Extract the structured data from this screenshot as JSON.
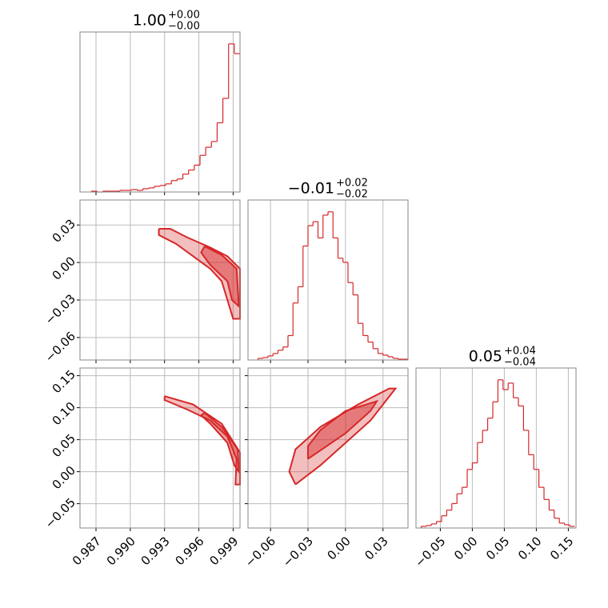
{
  "chart_data": {
    "type": "corner",
    "color": "#d62728",
    "grid": true,
    "params": [
      {
        "title": "1.00",
        "upper": "+0.00",
        "lower": "−0.00",
        "lim": [
          0.9856,
          0.9996
        ],
        "ticks": [
          0.987,
          {
            "value": 0.99,
            "label": "0.990"
          },
          0.993,
          0.996,
          0.999
        ],
        "hist": {
          "bins": [
            0.9866,
            0.9871,
            0.9876,
            0.9881,
            0.9886,
            0.9891,
            0.9896,
            0.9901,
            0.9906,
            0.9911,
            0.9916,
            0.9921,
            0.9926,
            0.9931,
            0.9936,
            0.9941,
            0.9946,
            0.9951,
            0.9956,
            0.9961,
            0.9966,
            0.9971,
            0.9976,
            0.9981,
            0.9986,
            0.9991,
            0.9996
          ],
          "values": [
            1,
            0,
            1,
            1,
            1,
            2,
            2,
            3,
            2,
            4,
            5,
            7,
            8,
            10,
            14,
            16,
            22,
            27,
            33,
            45,
            55,
            62,
            85,
            115,
            182,
            170
          ]
        }
      },
      {
        "title": "−0.01",
        "upper": "+0.02",
        "lower": "−0.02",
        "lim": [
          -0.078,
          0.05
        ],
        "ticks": [
          {
            "value": -0.06,
            "label": "−0.06"
          },
          {
            "value": -0.03,
            "label": "−0.03"
          },
          {
            "value": 0,
            "label": "0.00"
          },
          0.03
        ],
        "hist": {
          "bins": [
            -0.07,
            -0.066,
            -0.062,
            -0.058,
            -0.054,
            -0.05,
            -0.046,
            -0.042,
            -0.038,
            -0.034,
            -0.03,
            -0.026,
            -0.022,
            -0.018,
            -0.014,
            -0.01,
            -0.006,
            -0.002,
            0.002,
            0.006,
            0.01,
            0.014,
            0.018,
            0.022,
            0.026,
            0.03,
            0.034,
            0.038,
            0.042,
            0.046,
            0.05
          ],
          "values": [
            2,
            3,
            5,
            8,
            12,
            16,
            30,
            70,
            90,
            140,
            165,
            170,
            150,
            178,
            182,
            150,
            125,
            120,
            95,
            80,
            45,
            30,
            22,
            14,
            8,
            6,
            4,
            2,
            1,
            1
          ]
        }
      },
      {
        "title": "0.05",
        "upper": "+0.04",
        "lower": "−0.04",
        "lim": [
          -0.088,
          0.162
        ],
        "ticks": [
          {
            "value": -0.05,
            "label": "−0.05"
          },
          {
            "value": 0,
            "label": "0.00"
          },
          0.05,
          {
            "value": 0.1,
            "label": "0.10"
          },
          0.15
        ],
        "hist": {
          "bins": [
            -0.08,
            -0.072,
            -0.064,
            -0.056,
            -0.048,
            -0.04,
            -0.032,
            -0.024,
            -0.016,
            -0.008,
            0,
            0.008,
            0.016,
            0.024,
            0.032,
            0.04,
            0.048,
            0.056,
            0.064,
            0.072,
            0.08,
            0.088,
            0.096,
            0.104,
            0.112,
            0.12,
            0.128,
            0.136,
            0.144,
            0.152,
            0.16
          ],
          "values": [
            2,
            3,
            5,
            8,
            15,
            22,
            30,
            42,
            50,
            72,
            80,
            105,
            120,
            135,
            155,
            182,
            170,
            178,
            160,
            150,
            120,
            90,
            72,
            50,
            35,
            22,
            12,
            6,
            4,
            2
          ]
        }
      }
    ],
    "contours": [
      {
        "series": [
          {
            "x": [
              0.9925,
              0.9935,
              0.995,
              0.997,
              0.9985,
              0.9996,
              0.9996,
              0.999,
              0.9985,
              0.998,
              0.997,
              0.9955,
              0.994,
              0.9925,
              0.9925
            ],
            "y": [
              0.027,
              0.027,
              0.02,
              0.012,
              0.005,
              -0.005,
              -0.045,
              -0.045,
              -0.03,
              -0.015,
              -0.005,
              0.005,
              0.015,
              0.022,
              0.027
            ]
          },
          {
            "x": [
              0.9965,
              0.998,
              0.9993,
              0.9995,
              0.9989,
              0.9985,
              0.997,
              0.9962,
              0.9965
            ],
            "y": [
              0.013,
              0.006,
              -0.005,
              -0.035,
              -0.03,
              -0.015,
              -0.002,
              0.008,
              0.013
            ]
          }
        ]
      },
      {
        "series": [
          {
            "x": [
              0.993,
              0.9955,
              0.998,
              0.9996,
              0.9996,
              0.9992,
              0.9993,
              0.9985,
              0.997,
              0.995,
              0.993,
              0.993
            ],
            "y": [
              0.118,
              0.105,
              0.075,
              0.03,
              -0.02,
              -0.02,
              0.02,
              0.055,
              0.08,
              0.097,
              0.112,
              0.118
            ]
          },
          {
            "x": [
              0.9965,
              0.998,
              0.9994,
              0.9995,
              0.9991,
              0.9985,
              0.997,
              0.9962,
              0.9965
            ],
            "y": [
              0.092,
              0.07,
              0.035,
              0,
              0.01,
              0.045,
              0.075,
              0.088,
              0.092
            ]
          }
        ]
      },
      {
        "series": [
          {
            "x": [
              -0.04,
              -0.02,
              0,
              0.02,
              0.04,
              0.035,
              0.01,
              -0.02,
              -0.04,
              -0.045,
              -0.04
            ],
            "y": [
              -0.02,
              0.01,
              0.045,
              0.08,
              0.13,
              0.13,
              0.105,
              0.07,
              0.035,
              0,
              -0.02
            ]
          },
          {
            "x": [
              -0.03,
              0,
              0.02,
              0.025,
              0,
              -0.02,
              -0.03,
              -0.03
            ],
            "y": [
              0.02,
              0.06,
              0.095,
              0.11,
              0.095,
              0.065,
              0.04,
              0.02
            ]
          }
        ]
      }
    ]
  }
}
